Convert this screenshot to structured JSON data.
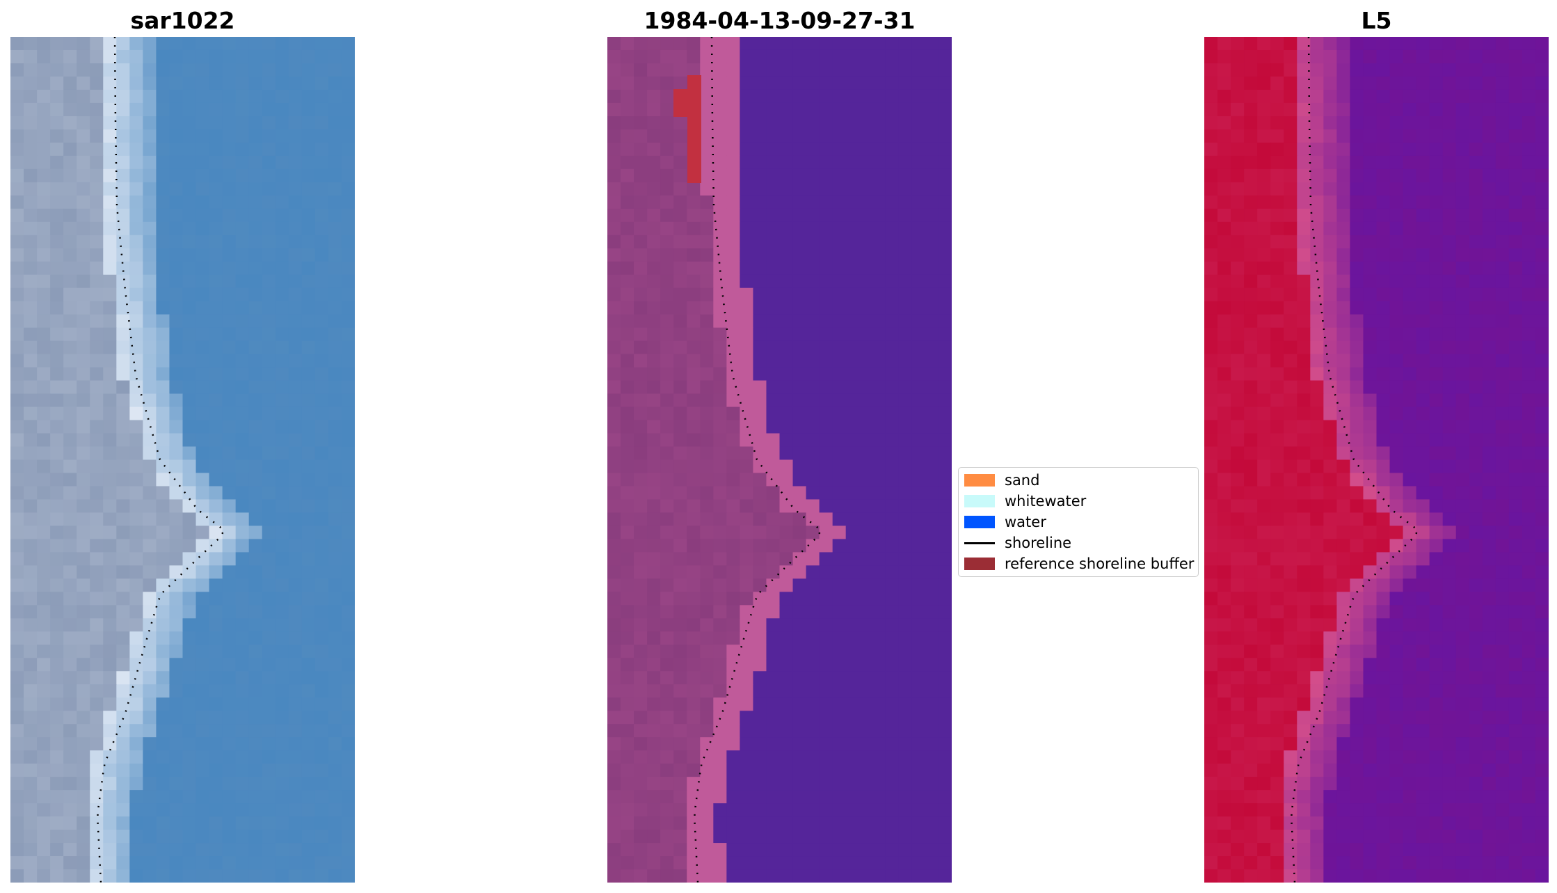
{
  "panels": [
    {
      "title": "sar1022",
      "style": "rgb"
    },
    {
      "title": "1984-04-13-09-27-31",
      "style": "classified"
    },
    {
      "title": "L5",
      "style": "index"
    }
  ],
  "legend": {
    "items": [
      {
        "label": "sand",
        "type": "patch",
        "color": "#ff8c42"
      },
      {
        "label": "whitewater",
        "type": "patch",
        "color": "#c8fafa"
      },
      {
        "label": "water",
        "type": "patch",
        "color": "#0055ff"
      },
      {
        "label": "shoreline",
        "type": "line",
        "color": "#000000"
      },
      {
        "label": "reference shoreline buffer",
        "type": "patch",
        "color": "#9b2d35"
      }
    ]
  },
  "colors": {
    "rgb_land": "#8c9cb8",
    "rgb_sand": "#e6ecf6",
    "rgb_water": "#4a88c0",
    "class_land": "#8a3d7e",
    "class_sand": "#c05a9a",
    "class_water": "#55259a",
    "class_buffer": "#c23040",
    "index_land": "#c40a3a",
    "index_mid": "#d8508a",
    "index_water": "#6a159e"
  }
}
